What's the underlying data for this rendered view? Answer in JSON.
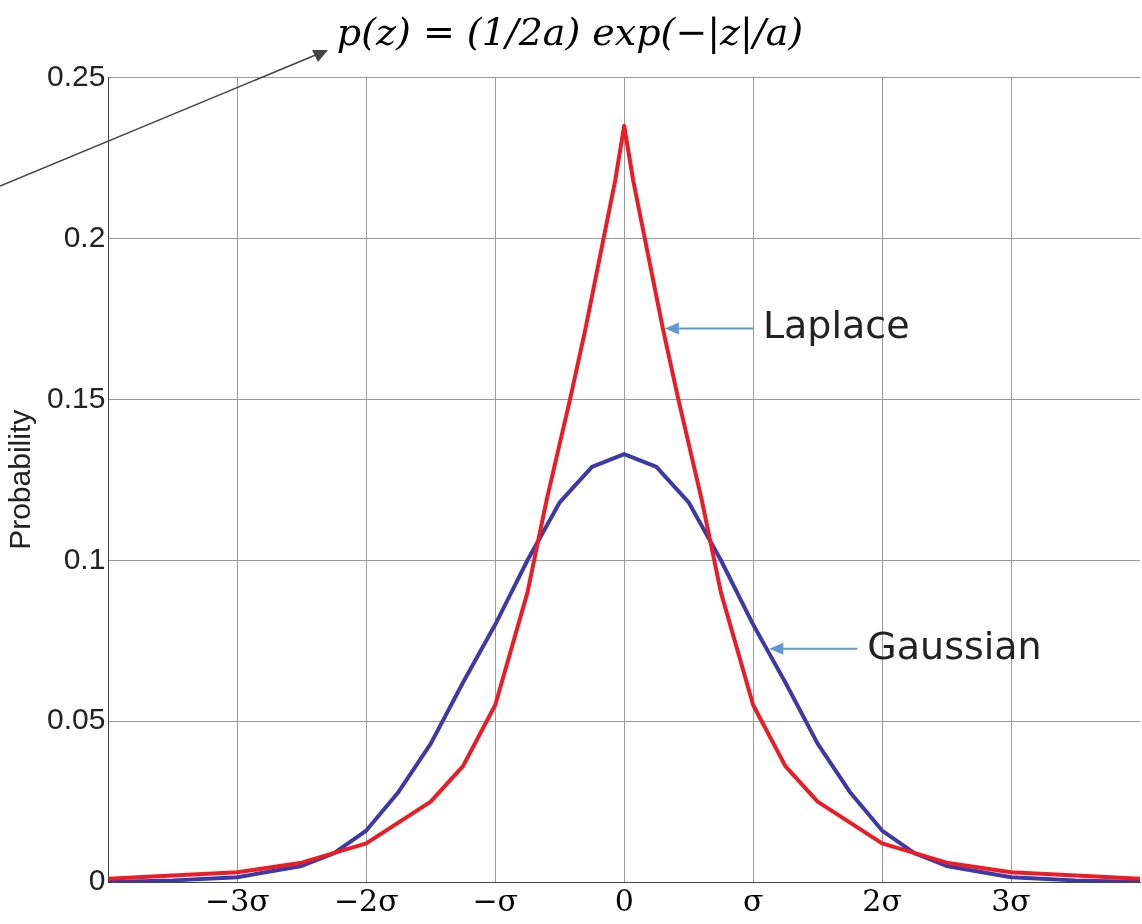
{
  "chart_data": {
    "type": "line",
    "title": "p(z) = (1/2a) exp(−|z|/a)",
    "ylabel": "Probability",
    "xlim": [
      -4,
      4
    ],
    "ylim": [
      0,
      0.25
    ],
    "xticks": [
      {
        "value": -3,
        "label": "−3σ"
      },
      {
        "value": -2,
        "label": "−2σ"
      },
      {
        "value": -1,
        "label": "−σ"
      },
      0,
      {
        "value": 1,
        "label": "σ"
      },
      {
        "value": 2,
        "label": "2σ"
      },
      {
        "value": 3,
        "label": "3σ"
      }
    ],
    "yticks": [
      0,
      0.05,
      0.1,
      0.15,
      0.2,
      0.25
    ],
    "grid": true,
    "legend": false,
    "marker": "none",
    "line_style": "solid",
    "series": [
      {
        "color": "#ed1c24",
        "x": [
          -4,
          -3.5,
          -3,
          -2.5,
          -2,
          -1.5,
          -1.25,
          -1,
          -0.75,
          -0.6,
          -0.42,
          -0.3,
          -0.07,
          0,
          0.07,
          0.3,
          0.42,
          0.6,
          0.75,
          1,
          1.25,
          1.5,
          2,
          2.5,
          3,
          3.5,
          4
        ],
        "values": [
          0.001,
          0.002,
          0.003,
          0.006,
          0.012,
          0.025,
          0.036,
          0.055,
          0.09,
          0.119,
          0.15,
          0.172,
          0.218,
          0.235,
          0.218,
          0.172,
          0.15,
          0.119,
          0.09,
          0.055,
          0.036,
          0.025,
          0.012,
          0.006,
          0.003,
          0.002,
          0.001
        ]
      },
      {
        "color": "#3a3aa8",
        "x": [
          -4,
          -3.5,
          -3,
          -2.5,
          -2.25,
          -2,
          -1.75,
          -1.5,
          -1.25,
          -1,
          -0.75,
          -0.5,
          -0.25,
          0,
          0.25,
          0.5,
          0.75,
          1,
          1.25,
          1.5,
          1.75,
          2,
          2.25,
          2.5,
          3,
          3.5,
          4
        ],
        "values": [
          0,
          0.0005,
          0.0015,
          0.005,
          0.009,
          0.016,
          0.028,
          0.043,
          0.062,
          0.08,
          0.1,
          0.118,
          0.129,
          0.133,
          0.129,
          0.118,
          0.1,
          0.08,
          0.062,
          0.043,
          0.028,
          0.016,
          0.009,
          0.005,
          0.0015,
          0.0005,
          0
        ]
      }
    ],
    "annotations": [
      {
        "text": "Laplace",
        "x": 0.3,
        "y": 0.172
      },
      {
        "text": "Gaussian",
        "x": 1.11,
        "y": 0.0725
      }
    ]
  }
}
